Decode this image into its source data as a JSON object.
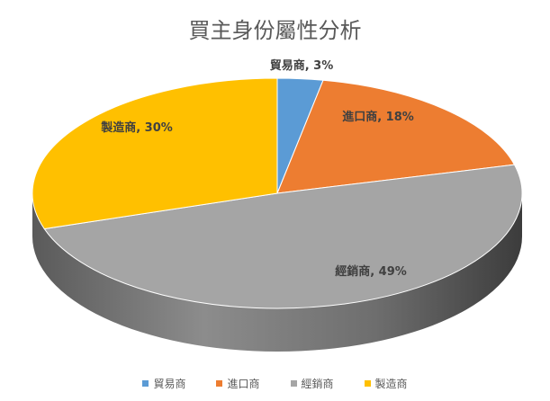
{
  "chart_data": {
    "type": "pie",
    "title": "買主身份屬性分析",
    "categories": [
      "貿易商",
      "進口商",
      "經銷商",
      "製造商"
    ],
    "values": [
      3,
      18,
      49,
      30
    ],
    "labels": [
      "貿易商, 3%",
      "進口商, 18%",
      "經銷商, 49%",
      "製造商, 30%"
    ],
    "colors": [
      "#5b9bd5",
      "#ed7d31",
      "#a5a5a5",
      "#ffc000"
    ],
    "legend": "bottom",
    "unit": "%"
  }
}
